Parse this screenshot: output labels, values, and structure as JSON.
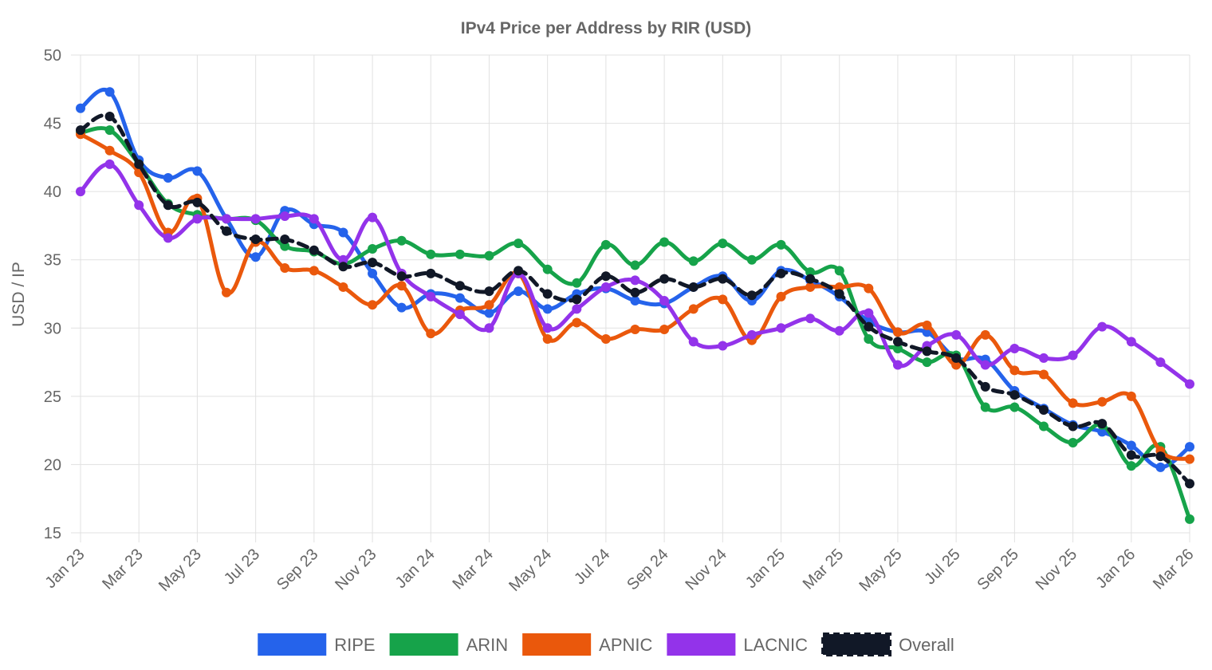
{
  "chart_data": {
    "type": "line",
    "title": "IPv4 Price per Address by RIR (USD)",
    "xlabel": "",
    "ylabel": "USD / IP",
    "ylim": [
      15,
      50
    ],
    "yticks": [
      15,
      20,
      25,
      30,
      35,
      40,
      45,
      50
    ],
    "grid": true,
    "legend_position": "bottom",
    "x": [
      "Jan 23",
      "Feb 23",
      "Mar 23",
      "Apr 23",
      "May 23",
      "Jun 23",
      "Jul 23",
      "Aug 23",
      "Sep 23",
      "Oct 23",
      "Nov 23",
      "Dec 23",
      "Jan 24",
      "Feb 24",
      "Mar 24",
      "Apr 24",
      "May 24",
      "Jun 24",
      "Jul 24",
      "Aug 24",
      "Sep 24",
      "Oct 24",
      "Nov 24",
      "Dec 24",
      "Jan 25",
      "Feb 25",
      "Mar 25",
      "Apr 25",
      "May 25",
      "Jun 25",
      "Jul 25",
      "Aug 25",
      "Sep 25",
      "Oct 25",
      "Nov 25",
      "Dec 25",
      "Jan 26",
      "Feb 26",
      "Mar 26"
    ],
    "x_tick_labels": [
      "Jan 23",
      "Mar 23",
      "May 23",
      "Jul 23",
      "Sep 23",
      "Nov 23",
      "Jan 24",
      "Mar 24",
      "May 24",
      "Jul 24",
      "Sep 24",
      "Nov 24",
      "Jan 25",
      "Mar 25",
      "May 25",
      "Jul 25",
      "Sep 25",
      "Nov 25",
      "Jan 26",
      "Mar 26"
    ],
    "series": [
      {
        "name": "RIPE",
        "color": "#2563eb",
        "dashed": false,
        "values": [
          46.1,
          47.3,
          42.3,
          41.0,
          41.5,
          38.0,
          35.2,
          38.6,
          37.6,
          37.0,
          34.0,
          31.5,
          32.5,
          32.2,
          31.1,
          32.7,
          31.4,
          32.5,
          32.9,
          32.0,
          31.8,
          33.0,
          33.8,
          32.0,
          34.2,
          33.5,
          32.3,
          30.5,
          29.7,
          29.7,
          27.8,
          27.7,
          25.4,
          24.1,
          22.9,
          22.4,
          21.4,
          19.8,
          21.3
        ]
      },
      {
        "name": "ARIN",
        "color": "#16a34a",
        "dashed": false,
        "values": [
          44.3,
          44.5,
          42.0,
          39.1,
          38.3,
          38.0,
          37.9,
          36.0,
          35.6,
          34.7,
          35.8,
          36.4,
          35.4,
          35.4,
          35.3,
          36.2,
          34.3,
          33.3,
          36.1,
          34.6,
          36.3,
          34.9,
          36.2,
          35.0,
          36.1,
          34.1,
          34.2,
          29.2,
          28.5,
          27.5,
          28.0,
          24.2,
          24.2,
          22.8,
          21.6,
          22.9,
          19.9,
          21.3,
          16.0
        ]
      },
      {
        "name": "APNIC",
        "color": "#ea580c",
        "dashed": false,
        "values": [
          44.2,
          43.0,
          41.4,
          37.0,
          39.5,
          32.6,
          36.3,
          34.4,
          34.2,
          33.0,
          31.7,
          33.1,
          29.6,
          31.3,
          31.7,
          34.0,
          29.2,
          30.4,
          29.2,
          29.9,
          29.9,
          31.4,
          32.1,
          29.1,
          32.3,
          33.0,
          33.0,
          32.9,
          29.7,
          30.2,
          27.3,
          29.5,
          26.9,
          26.6,
          24.5,
          24.6,
          25.0,
          21.0,
          20.4
        ]
      },
      {
        "name": "LACNIC",
        "color": "#9333ea",
        "dashed": false,
        "values": [
          40.0,
          42.0,
          39.0,
          36.6,
          38.0,
          38.0,
          38.0,
          38.2,
          38.0,
          35.0,
          38.1,
          34.0,
          32.3,
          31.0,
          30.0,
          34.0,
          30.0,
          31.4,
          33.0,
          33.5,
          32.0,
          29.0,
          28.7,
          29.5,
          30.0,
          30.7,
          29.8,
          31.1,
          27.3,
          28.7,
          29.5,
          27.3,
          28.5,
          27.8,
          28.0,
          30.1,
          29.0,
          27.5,
          25.9
        ]
      },
      {
        "name": "Overall",
        "color": "#111827",
        "dashed": true,
        "values": [
          44.5,
          45.5,
          42.0,
          39.0,
          39.2,
          37.1,
          36.5,
          36.5,
          35.7,
          34.5,
          34.8,
          33.8,
          34.0,
          33.1,
          32.7,
          34.2,
          32.5,
          32.1,
          33.8,
          32.6,
          33.6,
          33.0,
          33.6,
          32.4,
          34.0,
          33.6,
          32.5,
          30.1,
          29.0,
          28.3,
          27.8,
          25.7,
          25.1,
          24.0,
          22.8,
          23.0,
          20.7,
          20.6,
          18.6
        ]
      }
    ]
  }
}
